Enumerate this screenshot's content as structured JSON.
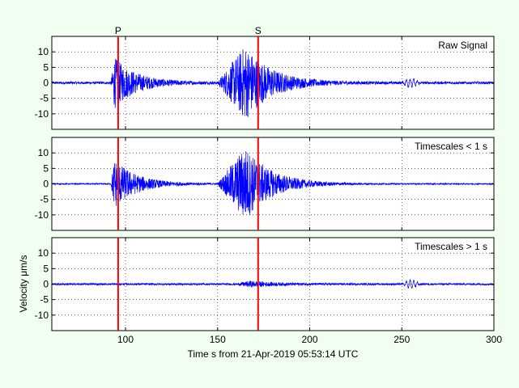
{
  "figure": {
    "background": "#f0fff0",
    "xlabel": "Time s from 21-Apr-2019 05:53:14 UTC",
    "ylabel": "Velocity μm/s",
    "xlim": [
      60,
      300
    ],
    "xticks": [
      100,
      150,
      200,
      250,
      300
    ],
    "signal_color": "#0000ff",
    "pick_color": "#ff0000",
    "picks": [
      {
        "label": "P",
        "time": 96
      },
      {
        "label": "S",
        "time": 172
      }
    ]
  },
  "chart_data": [
    {
      "type": "line",
      "title": "Raw Signal",
      "ylim": [
        -15,
        15
      ],
      "yticks": [
        10,
        5,
        0,
        -5,
        -10
      ],
      "grid": true,
      "series": [
        {
          "noise": 0.4,
          "wave": {
            "start": 250,
            "end": 260,
            "amp": 1.3,
            "period": 2
          },
          "bursts": [
            {
              "start": 92,
              "peak": 94,
              "amp": 8,
              "decay": 12
            },
            {
              "start": 150,
              "peak": 165,
              "amp": 12,
              "decay": 14
            }
          ]
        }
      ]
    },
    {
      "type": "line",
      "title": "Timescales < 1 s",
      "ylim": [
        -15,
        15
      ],
      "yticks": [
        10,
        5,
        0,
        -5,
        -10
      ],
      "grid": true,
      "series": [
        {
          "noise": 0.2,
          "wave": null,
          "bursts": [
            {
              "start": 92,
              "peak": 94,
              "amp": 8,
              "decay": 12
            },
            {
              "start": 150,
              "peak": 165,
              "amp": 12,
              "decay": 14
            }
          ]
        }
      ]
    },
    {
      "type": "line",
      "title": "Timescales > 1 s",
      "ylim": [
        -15,
        15
      ],
      "yticks": [
        10,
        5,
        0,
        -5,
        -10
      ],
      "grid": true,
      "series": [
        {
          "noise": 0.3,
          "wave": {
            "start": 250,
            "end": 260,
            "amp": 1.3,
            "period": 2
          },
          "bursts": [
            {
              "start": 160,
              "peak": 168,
              "amp": 0.8,
              "decay": 15
            }
          ]
        }
      ]
    }
  ]
}
